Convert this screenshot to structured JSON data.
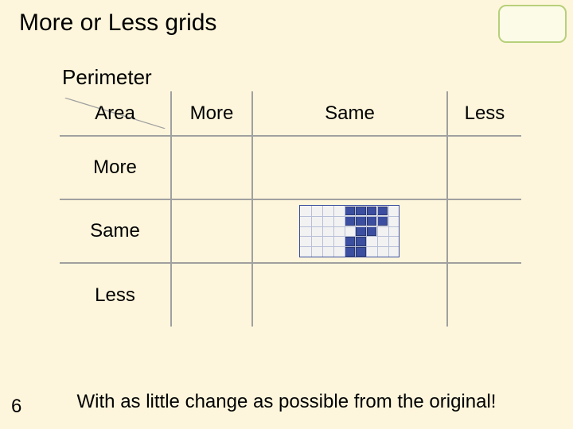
{
  "title": "More or Less grids",
  "page_number": "6",
  "footer": "With as little change as possible from the original!",
  "perimeter_label": "Perimeter",
  "area_label": "Area",
  "columns": [
    "More",
    "Same",
    "Less"
  ],
  "rows": [
    "More",
    "Same",
    "Less"
  ],
  "colors": {
    "background": "#fdf6dc",
    "grid_border": "#a0a0a0",
    "minigrid_bg": "#f2f2f2",
    "minigrid_border": "#3b4ea0",
    "minigrid_gridline": "#b8bfd8",
    "square_fill": "#3b4ea0",
    "corner_box_bg": "#fcfbe8",
    "corner_box_border": "#b7d07a"
  },
  "shape": {
    "grid_cols": 9,
    "grid_rows": 5,
    "filled_cells": [
      [
        0,
        4
      ],
      [
        0,
        5
      ],
      [
        0,
        6
      ],
      [
        0,
        7
      ],
      [
        1,
        4
      ],
      [
        1,
        5
      ],
      [
        1,
        6
      ],
      [
        1,
        7
      ],
      [
        2,
        5
      ],
      [
        2,
        6
      ],
      [
        3,
        4
      ],
      [
        3,
        5
      ],
      [
        4,
        4
      ],
      [
        4,
        5
      ]
    ],
    "in_row": 1,
    "in_col": 1
  }
}
